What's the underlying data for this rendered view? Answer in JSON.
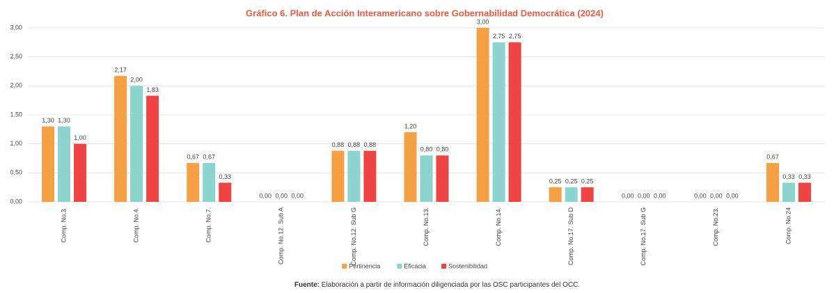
{
  "chart_data": {
    "type": "bar",
    "title": "Gráfico 6. Plan de Acción Interamericano sobre Gobernabilidad Democrática (2024)",
    "categories": [
      "Comp. No.3.",
      "Comp. No.4.",
      "Comp. No.7.",
      "Comp. No.12. Sub A",
      "Comp. No.12. Sub G",
      "Comp. No.13.",
      "Comp. No.14.",
      "Comp. No.17. Sub D",
      "Comp. No.17. Sub G",
      "Comp. No.23.",
      "Comp. No.24"
    ],
    "series": [
      {
        "name": "Pertinencia",
        "color": "#f5a042",
        "values": [
          1.3,
          2.17,
          0.67,
          0,
          0.88,
          1.2,
          3.0,
          0.25,
          0,
          0,
          0.67
        ],
        "value_labels": [
          "1,30",
          "2,17",
          "0,67",
          "0,00",
          "0,88",
          "1,20",
          "3,00",
          "0,25",
          "0,00",
          "0,00",
          "0,67"
        ]
      },
      {
        "name": "Eficacia",
        "color": "#8dd3cf",
        "values": [
          1.3,
          2.0,
          0.67,
          0,
          0.88,
          0.8,
          2.75,
          0.25,
          0,
          0,
          0.33
        ],
        "value_labels": [
          "1,30",
          "2,00",
          "0,67",
          "0,00",
          "0,88",
          "0,80",
          "2,75",
          "0,25",
          "0,00",
          "0,00",
          "0,33"
        ]
      },
      {
        "name": "Sostenibilidad",
        "color": "#f04444",
        "values": [
          1.0,
          1.83,
          0.33,
          0,
          0.88,
          0.8,
          2.75,
          0.25,
          0,
          0,
          0.33
        ],
        "value_labels": [
          "1,00",
          "1,83",
          "0,33",
          "0,00",
          "0,88",
          "0,80",
          "2,75",
          "0,25",
          "0,00",
          "0,00",
          "0,33"
        ]
      }
    ],
    "ylim": [
      0,
      3
    ],
    "yticks": [
      {
        "value": 0,
        "label": "0,00"
      },
      {
        "value": 0.5,
        "label": "0,50"
      },
      {
        "value": 1,
        "label": "1,00"
      },
      {
        "value": 1.5,
        "label": "1,50"
      },
      {
        "value": 2,
        "label": "2,00"
      },
      {
        "value": 2.5,
        "label": "2,50"
      },
      {
        "value": 3,
        "label": "3,00"
      }
    ],
    "grid": true,
    "legend": "bottom",
    "source_label": "Fuente:",
    "source_text": "Elaboración a partir de información diligenciada por las OSC participantes del OCC."
  }
}
